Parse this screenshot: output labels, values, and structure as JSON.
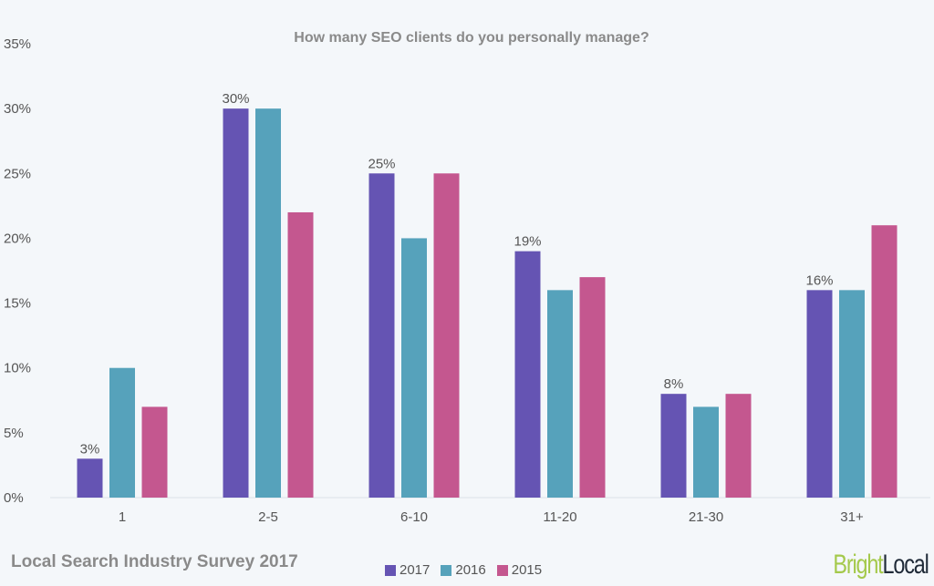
{
  "chart_data": {
    "type": "bar",
    "title": "How many SEO clients do you personally manage?",
    "categories": [
      "1",
      "2-5",
      "6-10",
      "11-20",
      "21-30",
      "31+"
    ],
    "series": [
      {
        "name": "2017",
        "color": "#6554b3",
        "values": [
          3,
          30,
          25,
          19,
          8,
          16
        ],
        "labeled": true
      },
      {
        "name": "2016",
        "color": "#56a2bb",
        "values": [
          10,
          30,
          20,
          16,
          7,
          16
        ],
        "labeled": false
      },
      {
        "name": "2015",
        "color": "#c4578f",
        "values": [
          7,
          22,
          25,
          17,
          8,
          21
        ],
        "labeled": false
      }
    ],
    "ylim": [
      0,
      35
    ],
    "yticks": [
      "0%",
      "5%",
      "10%",
      "15%",
      "20%",
      "25%",
      "30%",
      "35%"
    ],
    "grid": false,
    "legend_placement": "bottom"
  },
  "footer": {
    "survey": "Local Search Industry Survey 2017",
    "logo_bright": "Bright",
    "logo_local": "Local"
  }
}
